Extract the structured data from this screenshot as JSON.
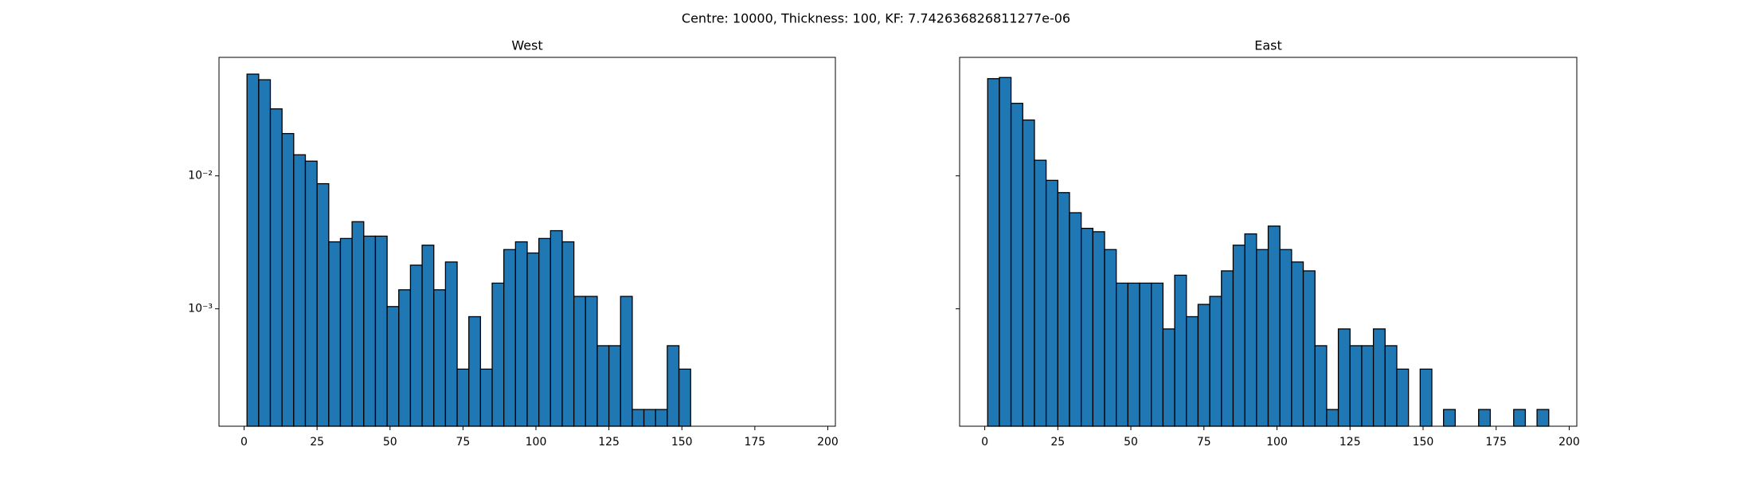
{
  "title": "Centre: 10000, Thickness: 100, KF: 7.742636826811277e-06",
  "chart_data": [
    {
      "type": "histogram",
      "title": "West",
      "color": "#1f77b4",
      "log_y": true,
      "bins": [
        1,
        5,
        9,
        13,
        17,
        21,
        25,
        29,
        33,
        37,
        41,
        45,
        49,
        53,
        57,
        61,
        65,
        69,
        73,
        77,
        81,
        85,
        89,
        93,
        97,
        101,
        105,
        109,
        113,
        117,
        121,
        125,
        129,
        133,
        137,
        141,
        145,
        149,
        153,
        157,
        161,
        165,
        169,
        173,
        177,
        181,
        185,
        189,
        193
      ],
      "values": [
        0.0582,
        0.0528,
        0.0319,
        0.0208,
        0.0144,
        0.0129,
        0.00873,
        0.00319,
        0.00338,
        0.00452,
        0.00352,
        0.00352,
        0.00104,
        0.00139,
        0.00213,
        0.00301,
        0.00139,
        0.00225,
        0.000352,
        0.000873,
        0.000352,
        0.00156,
        0.00279,
        0.00319,
        0.00263,
        0.00338,
        0.00387,
        0.00319,
        0.00124,
        0.00124,
        0.000528,
        0.000528,
        0.00124,
        0.000175,
        0.000175,
        0.000175,
        0.000528,
        0.000352,
        0,
        0,
        0,
        0,
        0,
        0,
        0,
        0,
        0,
        0
      ],
      "xlim": [
        -8.6,
        202.6
      ],
      "xticks": [
        0,
        25,
        50,
        75,
        100,
        125,
        150,
        175,
        200
      ],
      "ylim": [
        0.000131,
        0.0778
      ],
      "yticks": [
        {
          "value": 0.001,
          "label": "10⁻³"
        },
        {
          "value": 0.01,
          "label": "10⁻²"
        }
      ]
    },
    {
      "type": "histogram",
      "title": "East",
      "color": "#1f77b4",
      "log_y": true,
      "bins": [
        1,
        5,
        9,
        13,
        17,
        21,
        25,
        29,
        33,
        37,
        41,
        45,
        49,
        53,
        57,
        61,
        65,
        69,
        73,
        77,
        81,
        85,
        89,
        93,
        97,
        101,
        105,
        109,
        113,
        117,
        121,
        125,
        129,
        133,
        137,
        141,
        145,
        149,
        153,
        157,
        161,
        165,
        169,
        173,
        177,
        181,
        185,
        189,
        193
      ],
      "values": [
        0.0538,
        0.0549,
        0.0351,
        0.0263,
        0.0131,
        0.00925,
        0.00748,
        0.00528,
        0.00403,
        0.0038,
        0.00279,
        0.00156,
        0.00156,
        0.00156,
        0.00156,
        0.000706,
        0.00179,
        0.000873,
        0.00108,
        0.00124,
        0.00193,
        0.00301,
        0.00366,
        0.00279,
        0.00419,
        0.00279,
        0.00225,
        0.00193,
        0.000528,
        0.000175,
        0.000706,
        0.000528,
        0.000528,
        0.000706,
        0.000528,
        0.000352,
        0,
        0.000352,
        0,
        0.000175,
        0,
        0,
        0.000175,
        0,
        0,
        0.000175,
        0,
        0.000175
      ],
      "xlim": [
        -8.6,
        202.6
      ],
      "xticks": [
        0,
        25,
        50,
        75,
        100,
        125,
        150,
        175,
        200
      ],
      "ylim": [
        0.000131,
        0.0778
      ],
      "yticks": [
        0.001,
        0.01
      ]
    }
  ]
}
